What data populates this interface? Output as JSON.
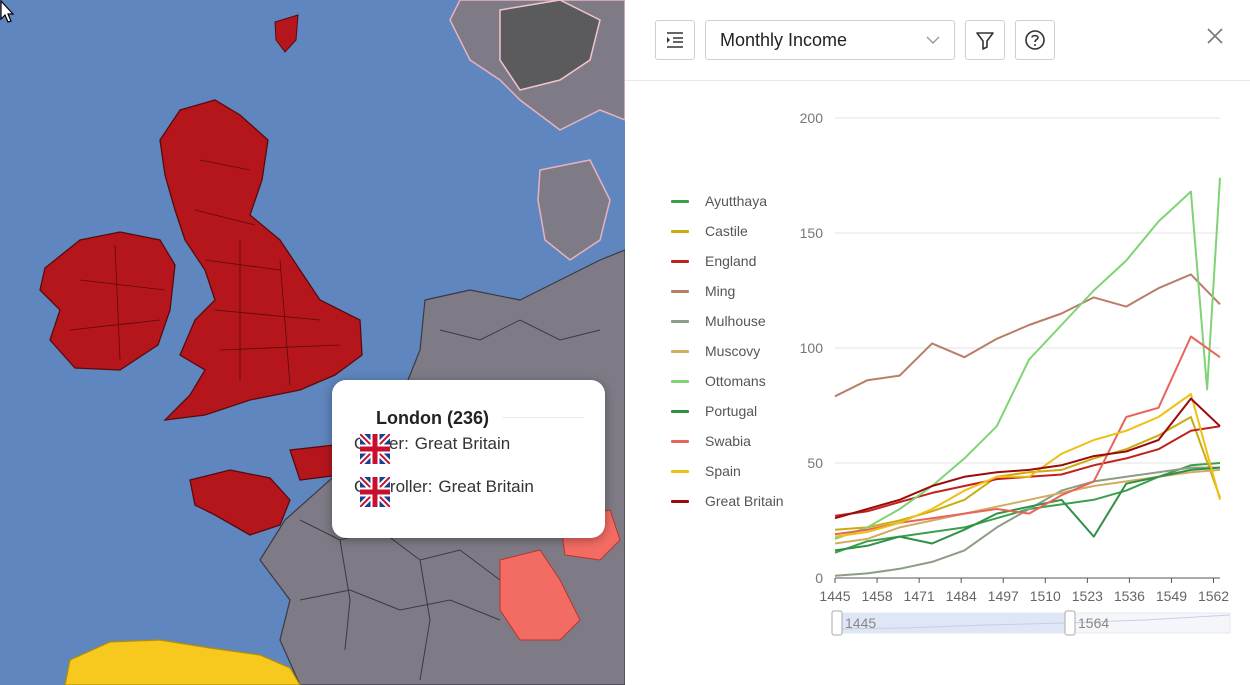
{
  "toolbar": {
    "list_icon": "list-indent-icon",
    "metric_select": {
      "value": "Monthly Income"
    },
    "filter_icon": "filter-icon",
    "help_icon": "help-circle-icon",
    "close_icon": "close-icon"
  },
  "tooltip": {
    "title": "London (236)",
    "owner_label": "Owner:",
    "owner_value": "Great Britain",
    "controller_label": "Controller:",
    "controller_value": "Great Britain"
  },
  "colors": {
    "ocean": "#5f86be",
    "britain": "#b5161c",
    "land_grey": "#7e7b86",
    "spain": "#f7c81e",
    "salmon": "#f36c63"
  },
  "chart_data": {
    "type": "line",
    "ylim": [
      0,
      200
    ],
    "y_ticks": [
      0,
      50,
      100,
      150,
      200
    ],
    "x_ticks": [
      1445,
      1458,
      1471,
      1484,
      1497,
      1510,
      1523,
      1536,
      1549,
      1562
    ],
    "xlim": [
      1445,
      1564
    ],
    "grid": true,
    "legend": "left",
    "zoom_range": {
      "start": "1445",
      "end": "1564"
    },
    "series": [
      {
        "name": "Ayutthaya",
        "color": "#3aa14a",
        "x": [
          1445,
          1455,
          1465,
          1475,
          1485,
          1495,
          1505,
          1515,
          1525,
          1535,
          1545,
          1555,
          1564
        ],
        "values": [
          11,
          16,
          18,
          20,
          22,
          26,
          30,
          32,
          34,
          38,
          44,
          49,
          50
        ]
      },
      {
        "name": "Castile",
        "color": "#c9ad10",
        "x": [
          1445,
          1455,
          1465,
          1475,
          1485,
          1495,
          1505,
          1515,
          1525,
          1535,
          1545,
          1555,
          1564
        ],
        "values": [
          21,
          22,
          25,
          29,
          34,
          44,
          46,
          47,
          52,
          56,
          62,
          70,
          35
        ]
      },
      {
        "name": "England",
        "color": "#c0211c",
        "x": [
          1445,
          1455,
          1465,
          1475,
          1485,
          1495,
          1505,
          1515,
          1525,
          1535,
          1545,
          1555,
          1564
        ],
        "values": [
          27,
          29,
          33,
          37,
          40,
          43,
          44,
          45,
          49,
          52,
          56,
          64,
          66
        ]
      },
      {
        "name": "Ming",
        "color": "#b97d68",
        "x": [
          1445,
          1455,
          1465,
          1475,
          1485,
          1495,
          1505,
          1515,
          1525,
          1535,
          1545,
          1555,
          1564
        ],
        "values": [
          79,
          86,
          88,
          102,
          96,
          104,
          110,
          115,
          122,
          118,
          126,
          132,
          119
        ]
      },
      {
        "name": "Mulhouse",
        "color": "#8c9c85",
        "x": [
          1445,
          1455,
          1465,
          1475,
          1485,
          1495,
          1505,
          1515,
          1525,
          1535,
          1545,
          1555,
          1564
        ],
        "values": [
          1,
          2,
          4,
          7,
          12,
          22,
          30,
          38,
          42,
          44,
          46,
          48,
          48
        ]
      },
      {
        "name": "Muscovy",
        "color": "#d2ac62",
        "x": [
          1445,
          1455,
          1465,
          1475,
          1485,
          1495,
          1505,
          1515,
          1525,
          1535,
          1545,
          1555,
          1564
        ],
        "values": [
          15,
          17,
          22,
          25,
          28,
          31,
          34,
          37,
          40,
          42,
          44,
          46,
          47
        ]
      },
      {
        "name": "Ottomans",
        "color": "#7fd374",
        "x": [
          1445,
          1455,
          1465,
          1475,
          1485,
          1495,
          1505,
          1515,
          1525,
          1535,
          1545,
          1555,
          1560,
          1564
        ],
        "values": [
          17,
          22,
          30,
          40,
          52,
          66,
          95,
          110,
          125,
          138,
          155,
          168,
          82,
          174
        ]
      },
      {
        "name": "Portugal",
        "color": "#2f9046",
        "x": [
          1445,
          1455,
          1465,
          1475,
          1485,
          1495,
          1505,
          1515,
          1525,
          1535,
          1545,
          1555,
          1564
        ],
        "values": [
          12,
          14,
          18,
          15,
          21,
          28,
          31,
          34,
          18,
          41,
          44,
          47,
          48
        ]
      },
      {
        "name": "Swabia",
        "color": "#e8645c",
        "x": [
          1445,
          1455,
          1465,
          1475,
          1485,
          1495,
          1505,
          1515,
          1525,
          1535,
          1545,
          1555,
          1564
        ],
        "values": [
          19,
          21,
          24,
          26,
          28,
          30,
          28,
          36,
          42,
          70,
          74,
          105,
          96
        ]
      },
      {
        "name": "Spain",
        "color": "#eebf14",
        "x": [
          1445,
          1455,
          1465,
          1475,
          1485,
          1495,
          1505,
          1515,
          1525,
          1535,
          1545,
          1555,
          1564
        ],
        "values": [
          18,
          20,
          24,
          30,
          38,
          44,
          44,
          54,
          60,
          64,
          70,
          80,
          34
        ]
      },
      {
        "name": "Great Britain",
        "color": "#9c0a0a",
        "x": [
          1445,
          1455,
          1465,
          1475,
          1485,
          1495,
          1505,
          1515,
          1525,
          1535,
          1545,
          1555,
          1564
        ],
        "values": [
          26,
          30,
          34,
          40,
          44,
          46,
          47,
          49,
          53,
          55,
          60,
          78,
          66
        ]
      }
    ]
  }
}
